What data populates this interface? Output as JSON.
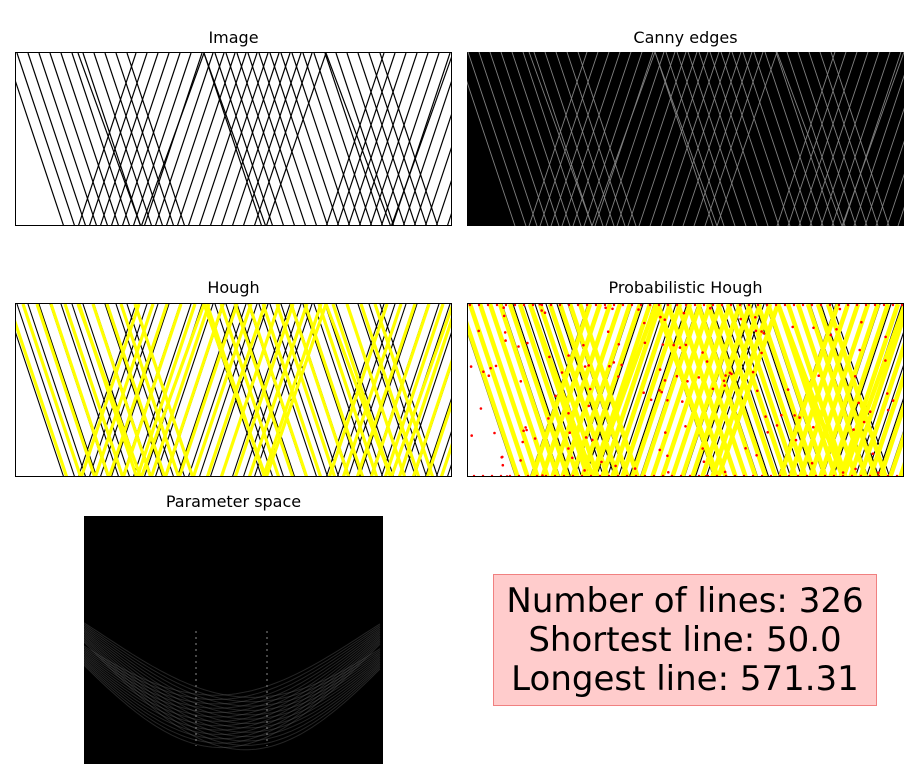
{
  "panels": {
    "image": {
      "title": "Image"
    },
    "canny": {
      "title": "Canny edges"
    },
    "hough": {
      "title": "Hough"
    },
    "prob_hough": {
      "title": "Probabilistic Hough"
    },
    "param_space": {
      "title": "Parameter space"
    }
  },
  "stats": {
    "number_of_lines": "Number of lines: 326",
    "shortest_line": "Shortest line: 50.0",
    "longest_line": "Longest line: 571.31"
  },
  "colors": {
    "background": "#ffffff",
    "line_dark": "#000000",
    "edge_gray": "#808080",
    "hough_yellow": "#ffff00",
    "prob_red": "#ff0000",
    "stats_box_fill": "#ffcccc",
    "stats_box_border": "#f08080"
  }
}
